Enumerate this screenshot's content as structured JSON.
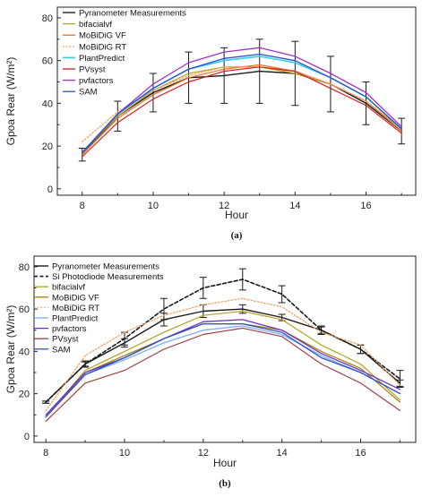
{
  "chart_data": [
    {
      "type": "line",
      "panel_label": "(a)",
      "xlabel": "Hour",
      "ylabel": "Gpoa Rear (W/m²)",
      "xlim": [
        7.3,
        17.4
      ],
      "ylim": [
        -3,
        85
      ],
      "xticks": [
        8,
        10,
        12,
        14,
        16
      ],
      "yticks": [
        0,
        20,
        40,
        60,
        80
      ],
      "grid": false,
      "legend_position": "top-left",
      "x": [
        8,
        9,
        10,
        11,
        12,
        13,
        14,
        15,
        16,
        17
      ],
      "series": [
        {
          "name": "Pyranometer Measurements",
          "color": "#1a1a1a",
          "dash": "solid",
          "width": 1.4,
          "values": [
            16,
            34,
            45,
            52,
            53,
            55,
            54,
            49,
            40,
            27
          ],
          "error": [
            3,
            7,
            9,
            12,
            13,
            15,
            15,
            13,
            10,
            6
          ]
        },
        {
          "name": "bifacialvf",
          "color": "#b5a020",
          "dash": "solid",
          "width": 1.2,
          "values": [
            17,
            34,
            46,
            54,
            57,
            57,
            54,
            49,
            41,
            28
          ]
        },
        {
          "name": "MoBiDiG VF",
          "color": "#e67020",
          "dash": "solid",
          "width": 1.2,
          "values": [
            16,
            33,
            44,
            52,
            56,
            58,
            55,
            49,
            41,
            27
          ]
        },
        {
          "name": "MoBiDiG RT",
          "color": "#f0a060",
          "dash": "dotted",
          "width": 1.3,
          "values": [
            22,
            36,
            46,
            53,
            57,
            57,
            55,
            49,
            41,
            28
          ]
        },
        {
          "name": "PlantPredict",
          "color": "#30d0e8",
          "dash": "solid",
          "width": 1.6,
          "values": [
            17,
            35,
            47,
            56,
            60,
            62,
            59,
            52,
            43,
            28
          ]
        },
        {
          "name": "PVsyst",
          "color": "#d02020",
          "dash": "solid",
          "width": 1.2,
          "values": [
            15,
            31,
            42,
            50,
            55,
            57,
            55,
            47,
            39,
            26
          ]
        },
        {
          "name": "pvfactors",
          "color": "#a030c8",
          "dash": "solid",
          "width": 1.3,
          "values": [
            17,
            35,
            49,
            59,
            64,
            66,
            62,
            54,
            45,
            29
          ]
        },
        {
          "name": "SAM",
          "color": "#2850d0",
          "dash": "solid",
          "width": 1.3,
          "values": [
            17,
            35,
            47,
            56,
            61,
            63,
            60,
            52,
            43,
            28
          ]
        }
      ]
    },
    {
      "type": "line",
      "panel_label": "(b)",
      "xlabel": "Hour",
      "ylabel": "Gpoa Rear (W/m²)",
      "xlim": [
        7.7,
        17.4
      ],
      "ylim": [
        -3,
        85
      ],
      "xticks": [
        8,
        10,
        12,
        14,
        16
      ],
      "yticks": [
        0,
        20,
        40,
        60,
        80
      ],
      "grid": false,
      "legend_position": "top-left",
      "x": [
        8,
        9,
        10,
        11,
        12,
        13,
        14,
        15,
        16,
        17
      ],
      "series": [
        {
          "name": "Pyranometer Measurements",
          "color": "#1a1a1a",
          "dash": "solid",
          "width": 1.4,
          "values": [
            16,
            34,
            44,
            55,
            59,
            60,
            56,
            50,
            41,
            25
          ],
          "error": [
            0.5,
            1,
            2,
            3,
            3,
            2,
            1.5,
            1.5,
            2,
            1.5
          ]
        },
        {
          "name": "Si Photodiode Measurements",
          "color": "#1a1a1a",
          "dash": "dashed",
          "width": 1.6,
          "values": [
            16,
            34,
            46,
            60,
            70,
            74,
            67,
            50,
            41,
            27
          ],
          "error": [
            0.5,
            1.5,
            3,
            5,
            5,
            5,
            4,
            2,
            2,
            4
          ]
        },
        {
          "name": "bifacialvf",
          "color": "#b5a020",
          "dash": "solid",
          "width": 1.2,
          "values": [
            9,
            31,
            40,
            49,
            57,
            59,
            55,
            43,
            34,
            17
          ]
        },
        {
          "name": "MoBiDiG VF",
          "color": "#a08000",
          "dash": "solid",
          "width": 1.2,
          "values": [
            9,
            30,
            38,
            46,
            53,
            53,
            50,
            40,
            32,
            16
          ]
        },
        {
          "name": "MoBiDiG RT",
          "color": "#f0a060",
          "dash": "dotted",
          "width": 1.3,
          "values": [
            12,
            38,
            49,
            57,
            62,
            65,
            61,
            49,
            43,
            24
          ]
        },
        {
          "name": "PlantPredict",
          "color": "#7ab0f0",
          "dash": "solid",
          "width": 1.3,
          "values": [
            9,
            29,
            36,
            44,
            50,
            52,
            48,
            38,
            30,
            20
          ]
        },
        {
          "name": "pvfactors",
          "color": "#7030c0",
          "dash": "solid",
          "width": 1.3,
          "values": [
            10,
            30,
            37,
            46,
            54,
            55,
            50,
            39,
            31,
            22
          ]
        },
        {
          "name": "PVsyst",
          "color": "#a04040",
          "dash": "solid",
          "width": 1.2,
          "values": [
            7,
            25,
            31,
            41,
            48,
            51,
            47,
            34,
            25,
            12
          ]
        },
        {
          "name": "SAM",
          "color": "#3050c8",
          "dash": "solid",
          "width": 1.3,
          "values": [
            9,
            29,
            37,
            46,
            53,
            53,
            49,
            37,
            30,
            20
          ]
        }
      ]
    }
  ]
}
